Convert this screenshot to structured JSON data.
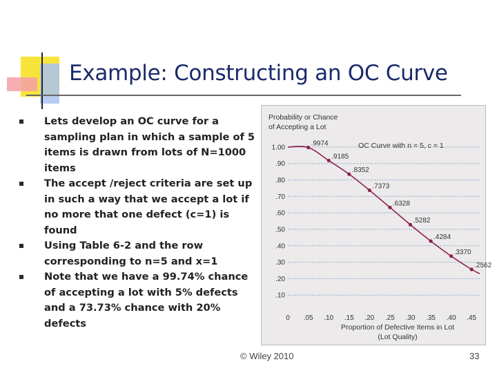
{
  "slide": {
    "title": "Example: Constructing an OC Curve",
    "bullets": [
      "Lets develop an OC curve for a sampling plan in which a sample of 5 items is drawn from lots of N=1000 items",
      "The accept /reject criteria are set up in such a way that we accept a lot if no more that one defect (c=1) is found",
      "Using Table 6-2 and the row corresponding to n=5 and x=1",
      "Note that we have a 99.74% chance of accepting a lot with 5% defects and a 73.73% chance with 20% defects"
    ],
    "footer": "© Wiley 2010",
    "page_number": "33"
  },
  "colors": {
    "title": "#1a2a6c",
    "curve": "#8b2252",
    "chart_background": "#eceaea",
    "grid": "#7a9cc8"
  },
  "chart_data": {
    "type": "line",
    "title": "OC Curve with n = 5, c = 1",
    "ylabel": "Probability or Chance of Accepting a Lot",
    "xlabel": "Proportion of Defective Items in Lot (Lot Quality)",
    "xlim": [
      0,
      0.47
    ],
    "ylim": [
      0,
      1.05
    ],
    "x_ticks": [
      0,
      0.05,
      0.1,
      0.15,
      0.2,
      0.25,
      0.3,
      0.35,
      0.4,
      0.45
    ],
    "x_tick_labels": [
      "0",
      ".05",
      ".10",
      ".15",
      ".20",
      ".25",
      ".30",
      ".35",
      ".40",
      ".45"
    ],
    "y_ticks": [
      0.1,
      0.2,
      0.3,
      0.4,
      0.5,
      0.6,
      0.7,
      0.8,
      0.9,
      1.0
    ],
    "y_tick_labels": [
      ".10",
      ".20",
      ".30",
      ".40",
      ".50",
      ".60",
      ".70",
      ".80",
      ".90",
      "1.00"
    ],
    "grid": "horizontal dotted",
    "series": [
      {
        "x": [
          0.05,
          0.1,
          0.15,
          0.2,
          0.25,
          0.3,
          0.35,
          0.4,
          0.45
        ],
        "values": [
          0.9974,
          0.9185,
          0.8352,
          0.7373,
          0.6328,
          0.5282,
          0.4284,
          0.337,
          0.2562
        ],
        "labels": [
          ".9974",
          ".9185",
          ".8352",
          ".7373",
          ".6328",
          ".5282",
          ".4284",
          ".3370",
          ".2562"
        ]
      }
    ],
    "curve_x": [
      0.0,
      0.05,
      0.1,
      0.15,
      0.2,
      0.25,
      0.3,
      0.35,
      0.4,
      0.45,
      0.47
    ],
    "curve_y": [
      1.0,
      0.9974,
      0.9185,
      0.8352,
      0.7373,
      0.6328,
      0.5282,
      0.4284,
      0.337,
      0.2562,
      0.23
    ]
  }
}
